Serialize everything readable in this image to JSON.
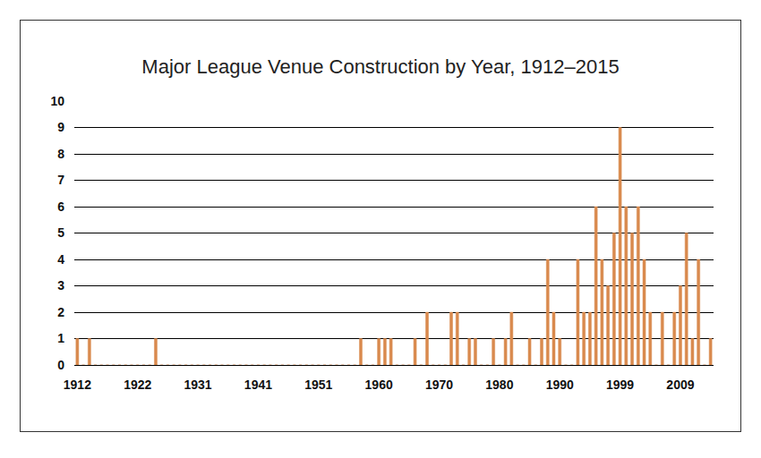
{
  "chart_data": {
    "type": "bar",
    "title": "Major League Venue Construction by Year, 1912–2015",
    "categories": [
      "1912",
      null,
      null,
      null,
      null,
      null,
      null,
      null,
      null,
      null,
      "1922",
      null,
      null,
      null,
      null,
      null,
      null,
      null,
      null,
      null,
      "1931",
      null,
      null,
      null,
      null,
      null,
      null,
      null,
      null,
      null,
      "1941",
      null,
      null,
      null,
      null,
      null,
      null,
      null,
      null,
      null,
      "1951",
      null,
      null,
      null,
      null,
      null,
      null,
      null,
      null,
      null,
      "1960",
      null,
      null,
      null,
      null,
      null,
      null,
      null,
      null,
      null,
      "1970",
      null,
      null,
      null,
      null,
      null,
      null,
      null,
      null,
      null,
      "1980",
      null,
      null,
      null,
      null,
      null,
      null,
      null,
      null,
      null,
      "1990",
      null,
      null,
      null,
      null,
      null,
      null,
      null,
      null,
      null,
      "1999",
      null,
      null,
      null,
      null,
      null,
      null,
      null,
      null,
      null,
      "2009",
      null,
      null,
      null,
      null,
      null
    ],
    "values": [
      1,
      0,
      1,
      0,
      0,
      0,
      0,
      0,
      0,
      0,
      0,
      0,
      0,
      1,
      0,
      0,
      0,
      0,
      0,
      0,
      0,
      0,
      0,
      0,
      0,
      0,
      0,
      0,
      0,
      0,
      0,
      0,
      0,
      0,
      0,
      0,
      0,
      0,
      0,
      0,
      0,
      0,
      0,
      0,
      0,
      0,
      0,
      1,
      0,
      0,
      1,
      1,
      1,
      0,
      0,
      0,
      1,
      0,
      2,
      0,
      0,
      0,
      2,
      2,
      0,
      1,
      1,
      0,
      0,
      1,
      0,
      1,
      2,
      0,
      0,
      1,
      0,
      1,
      4,
      2,
      1,
      0,
      0,
      4,
      2,
      2,
      6,
      4,
      3,
      5,
      9,
      6,
      5,
      6,
      4,
      2,
      0,
      2,
      0,
      2,
      3,
      5,
      1,
      4,
      0,
      1
    ],
    "color": "#d98a4e",
    "ylim": [
      0,
      10
    ],
    "yticks": [
      0,
      1,
      2,
      3,
      4,
      5,
      6,
      7,
      8,
      9,
      10
    ],
    "grid": true
  }
}
